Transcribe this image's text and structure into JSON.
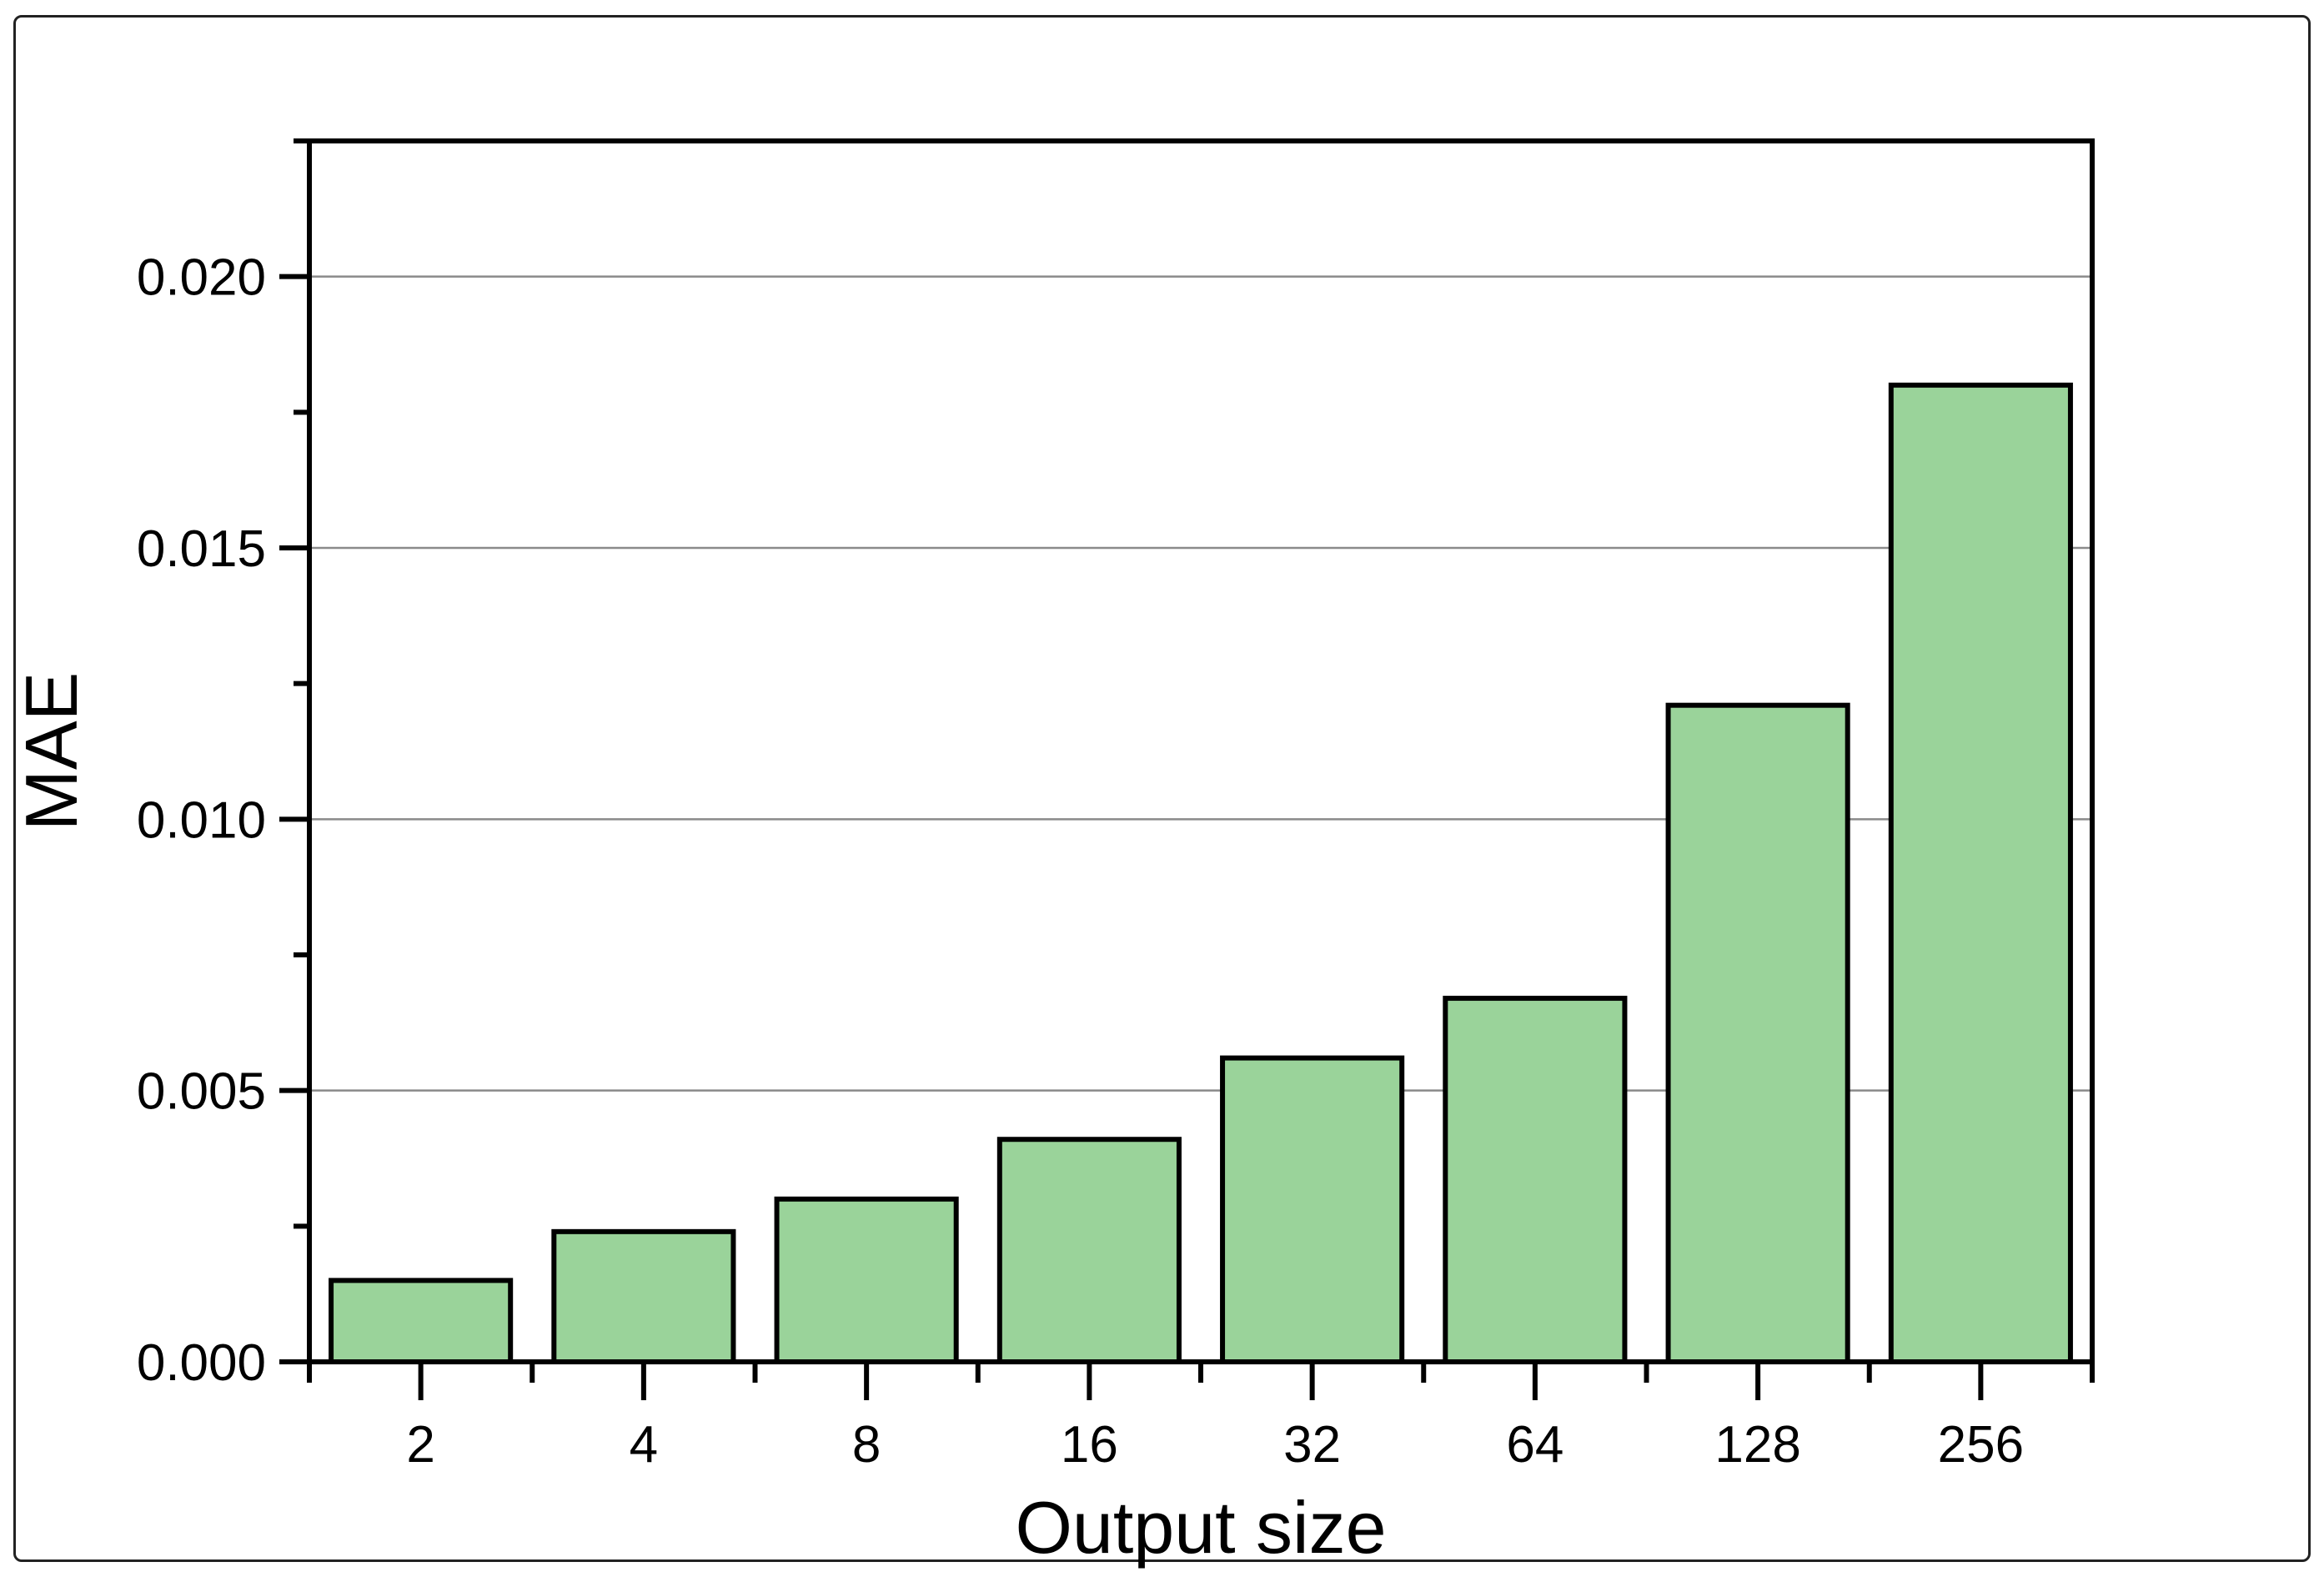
{
  "figure": {
    "background": "#ffffff",
    "border_color": "#222222"
  },
  "chart_data": {
    "type": "bar",
    "title": "",
    "xlabel": "Output size",
    "ylabel": "MAE",
    "categories": [
      "2",
      "4",
      "8",
      "16",
      "32",
      "64",
      "128",
      "256"
    ],
    "values": [
      0.0015,
      0.0024,
      0.003,
      0.0041,
      0.0056,
      0.0067,
      0.0121,
      0.018
    ],
    "ylim": [
      0,
      0.0225
    ],
    "y_major_tick_values": [
      0.0,
      0.005,
      0.01,
      0.015,
      0.02
    ],
    "y_tick_labels": [
      "0.000",
      "0.005",
      "0.010",
      "0.015",
      "0.020"
    ],
    "y_minor_tick_values": [
      0.0025,
      0.0075,
      0.0125,
      0.0175,
      0.0225
    ],
    "grid": "horizontal-major-only",
    "legend_position": "none",
    "colors": {
      "bar_fill": "#9AD39A",
      "bar_stroke": "#000000",
      "grid_color": "#8a8a8a",
      "axis_color": "#000000",
      "text_color": "#000000"
    }
  }
}
